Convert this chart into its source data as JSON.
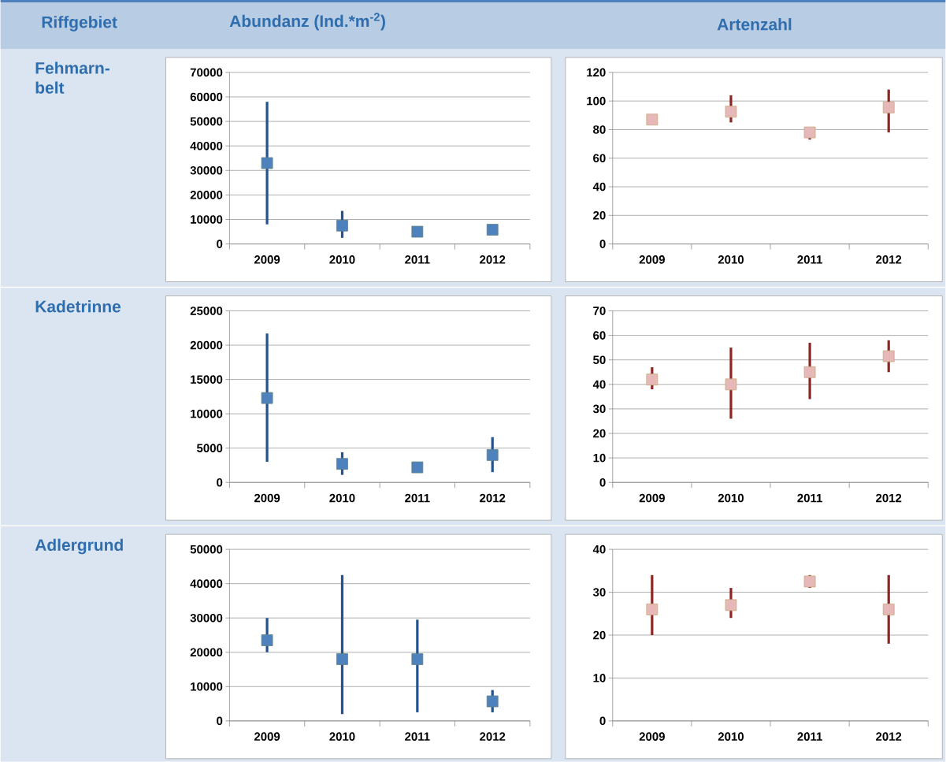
{
  "chart_data": [
    {
      "type": "other",
      "title": "Riffgebiet",
      "annotations": [
        "Fehmarn-belt",
        "Kadetrinne",
        "Adlergrund"
      ]
    },
    {
      "type": "scatter",
      "title": "Abundanz (Ind.*m$^{-2}$)",
      "categories": [
        "2009",
        "2010",
        "2011",
        "2012"
      ],
      "values": [
        33000,
        7500,
        5000,
        5800
      ],
      "errors": [
        [
          8000,
          58000
        ],
        [
          2500,
          13500
        ],
        null,
        null
      ],
      "color": "#4f81bd",
      "ylim": [
        0,
        70000
      ],
      "yticks": [
        0,
        10000,
        20000,
        30000,
        40000,
        50000,
        60000,
        70000
      ],
      "grid": "y",
      "marker": "square"
    },
    {
      "type": "scatter",
      "title": "Artenzahl",
      "categories": [
        "2009",
        "2010",
        "2011",
        "2012"
      ],
      "values": [
        87,
        92.5,
        78,
        95.5
      ],
      "errors": [
        null,
        [
          85,
          104
        ],
        [
          73,
          80
        ],
        [
          78,
          108
        ]
      ],
      "color": "#e6b9b8",
      "ylim": [
        0,
        120
      ],
      "yticks": [
        0,
        20,
        40,
        60,
        80,
        100,
        120
      ],
      "grid": "y",
      "marker": "square"
    },
    {
      "type": "scatter",
      "categories": [
        "2009",
        "2010",
        "2011",
        "2012"
      ],
      "values": [
        12300,
        2700,
        2200,
        4000
      ],
      "errors": [
        [
          3000,
          21700
        ],
        [
          1100,
          4400
        ],
        null,
        [
          1500,
          6600
        ]
      ],
      "color": "#4f81bd",
      "ylim": [
        0,
        25000
      ],
      "yticks": [
        0,
        5000,
        10000,
        15000,
        20000,
        25000
      ],
      "grid": "y",
      "marker": "square"
    },
    {
      "type": "scatter",
      "categories": [
        "2009",
        "2010",
        "2011",
        "2012"
      ],
      "values": [
        42,
        40,
        45,
        51.5
      ],
      "errors": [
        [
          38,
          47
        ],
        [
          26,
          55
        ],
        [
          34,
          57
        ],
        [
          45,
          58
        ]
      ],
      "color": "#e6b9b8",
      "ylim": [
        0,
        70
      ],
      "yticks": [
        0,
        10,
        20,
        30,
        40,
        50,
        60,
        70
      ],
      "grid": "y",
      "marker": "square"
    },
    {
      "type": "scatter",
      "categories": [
        "2009",
        "2010",
        "2011",
        "2012"
      ],
      "values": [
        23500,
        18000,
        18000,
        5700
      ],
      "errors": [
        [
          20000,
          30000
        ],
        [
          2000,
          42500
        ],
        [
          2500,
          29500
        ],
        [
          2500,
          9000
        ]
      ],
      "color": "#4f81bd",
      "ylim": [
        0,
        50000
      ],
      "yticks": [
        0,
        10000,
        20000,
        30000,
        40000,
        50000
      ],
      "grid": "y",
      "marker": "square"
    },
    {
      "type": "scatter",
      "categories": [
        "2009",
        "2010",
        "2011",
        "2012"
      ],
      "values": [
        26,
        27,
        32.5,
        26
      ],
      "errors": [
        [
          20,
          34
        ],
        [
          24,
          31
        ],
        [
          31,
          34
        ],
        [
          18,
          34
        ]
      ],
      "color": "#e6b9b8",
      "ylim": [
        0,
        40
      ],
      "yticks": [
        0,
        10,
        20,
        30,
        40
      ],
      "grid": "y",
      "marker": "square"
    }
  ]
}
